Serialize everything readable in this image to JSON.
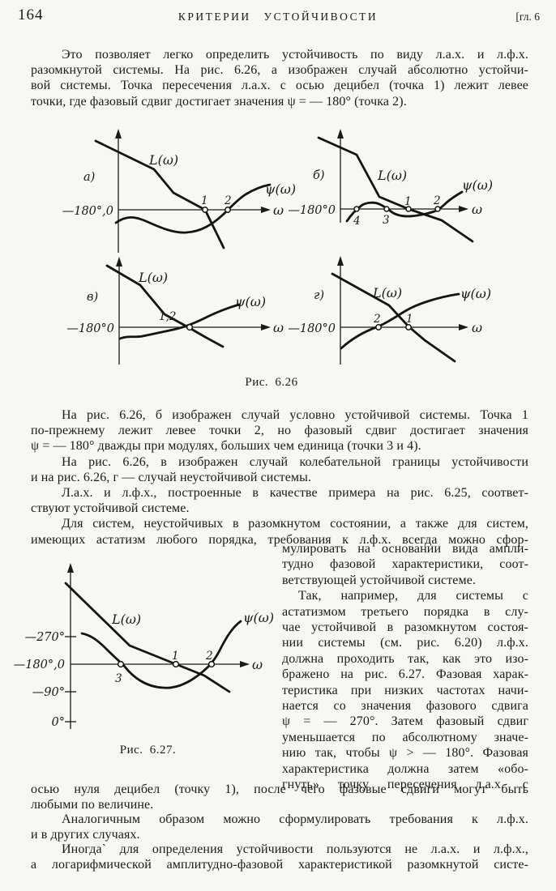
{
  "header": {
    "page_number": "164",
    "running_title": "КРИТЕРИИ УСТОЙЧИВОСТИ",
    "chapter": "[гл. 6"
  },
  "intro": {
    "lines": [
      {
        "t": "Это позволяет легко определить устойчивость по виду л.а.х. и л.ф.х.",
        "ind": true
      },
      {
        "t": "разомкнутой системы. На рис. 6.26, а изображен случай абсолютно устойчи-"
      },
      {
        "t": "вой системы. Точка пересечения л.а.х. с осью децибел (точка 1) лежит левее"
      },
      {
        "t": "точки, где фазовый сдвиг достигает значения ψ = — 180° (точка 2).",
        "last": true
      }
    ]
  },
  "fig626": {
    "caption": "Рис. 6.26",
    "panels": [
      {
        "tag": "а)",
        "axis": "—180°,0",
        "L": "L(ω)",
        "psi": "ψ(ω)",
        "omega": "ω",
        "p1": "1",
        "p2": "2"
      },
      {
        "tag": "б)",
        "axis": "—180°0",
        "L": "L(ω)",
        "psi": "ψ(ω)",
        "omega": "ω",
        "p1": "1",
        "p2": "2",
        "p3": "3",
        "p4": "4"
      },
      {
        "tag": "в)",
        "axis": "—180°0",
        "L": "L(ω)",
        "psi": "ψ(ω)",
        "omega": "ω",
        "p12": "1,2"
      },
      {
        "tag": "г)",
        "axis": "—180°0",
        "L": "L(ω)",
        "psi": "ψ(ω)",
        "omega": "ω",
        "p1": "1",
        "p2": "2"
      }
    ]
  },
  "mid": {
    "lines": [
      {
        "t": "На рис. 6.26, б изображен случай условно устойчивой системы. Точка 1",
        "ind": true
      },
      {
        "t": "по-прежнему лежит левее точки 2, но фазовый сдвиг достигает значения"
      },
      {
        "t": "ψ = — 180° дважды при модулях, больших чем единица (точки 3 и 4).",
        "last": true
      },
      {
        "t": "На рис. 6.26, в изображен случай колебательной границы устойчивости",
        "ind": true
      },
      {
        "t": "и на рис. 6.26, г — случай неустойчивой системы.",
        "last": true
      },
      {
        "t": "Л.а.х. и л.ф.х., построенные в качестве примера на рис. 6.25, соответ-",
        "ind": true
      },
      {
        "t": "ствуют устойчивой системе.",
        "last": true
      },
      {
        "t": "Для систем, неустойчивых в разомкнутом состоянии, а также для систем,",
        "ind": true
      },
      {
        "t": "имеющих астатизм любого порядка, требования к л.ф.х. всегда можно сфор-"
      }
    ]
  },
  "right_col": {
    "lines": [
      {
        "t": "мулировать на основании вида ампли-"
      },
      {
        "t": "тудно фазовой характеристики, соот-"
      },
      {
        "t": "ветствующей устойчивой системе.",
        "last": true
      },
      {
        "t": "Так, например, для системы с",
        "ind": true
      },
      {
        "t": "астатизмом третьего порядка в слу-"
      },
      {
        "t": "чае устойчивой в разомкнутом состоя-"
      },
      {
        "t": "нии системы (см. рис. 6.20) л.ф.х."
      },
      {
        "t": "должна проходить так, как это изо-"
      },
      {
        "t": "бражено на рис. 6.27. Фазовая харак-"
      },
      {
        "t": "теристика при низких частотах начи-"
      },
      {
        "t": "нается со значения фазового сдвига"
      },
      {
        "t": "ψ = — 270°. Затем фазовый сдвиг"
      },
      {
        "t": "уменьшается по абсолютному значе-"
      },
      {
        "t": "нию так, чтобы ψ > — 180°. Фазовая"
      },
      {
        "t": "характеристика должна затем «обо-"
      },
      {
        "t": "гнуть» точку пересечения л.а.х. с"
      }
    ]
  },
  "fig627": {
    "caption": "Рис. 6.27.",
    "y270": "—270°",
    "y180": "—180°,0",
    "y90": "—90°",
    "y0": "0°",
    "L": "L(ω)",
    "psi": "ψ(ω)",
    "omega": "ω",
    "p1": "1",
    "p2": "2",
    "p3": "3"
  },
  "bottom": {
    "lines": [
      {
        "t": "осью нуля децибел (точку 1), после чего фазовые сдвиги могут быть"
      },
      {
        "t": "любыми по величине.",
        "last": true
      },
      {
        "t": "Аналогичным образом можно сформулировать требования к л.ф.х.",
        "ind": true
      },
      {
        "t": "и в других случаях.",
        "last": true
      },
      {
        "t": "Иногда` для определения устойчивости пользуются не л.а.х. и л.ф.х.,",
        "ind": true
      },
      {
        "t": "а логарифмической амплитудно-фазовой характеристикой разомкнутой систе-"
      }
    ]
  }
}
